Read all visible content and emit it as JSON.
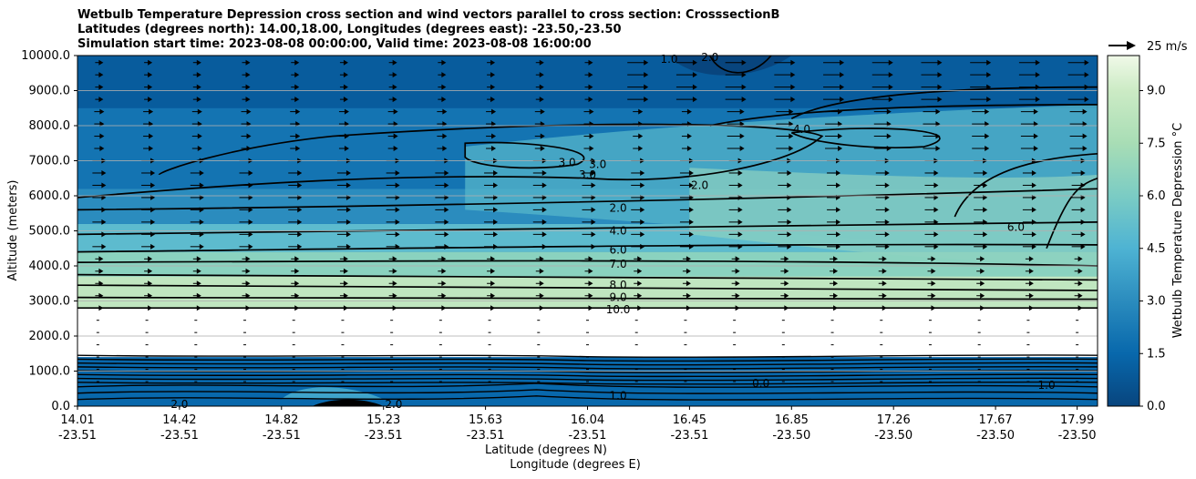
{
  "chart_data": {
    "type": "contour",
    "title_lines": [
      "Wetbulb Temperature Depression cross section and wind vectors parallel to cross section: CrosssectionB",
      "Latitudes (degrees north): 14.00,18.00, Longitudes (degrees east): -23.50,-23.50",
      "Simulation start time: 2023-08-08 00:00:00, Valid time: 2023-08-08 16:00:00"
    ],
    "ylabel": "Altitude (meters)",
    "xlabel_lat": "Latitude (degrees N)",
    "xlabel_lon": "Longitude (degrees E)",
    "ylim": [
      0,
      10000
    ],
    "yticks": [
      "0.0",
      "1000.0",
      "2000.0",
      "3000.0",
      "4000.0",
      "5000.0",
      "6000.0",
      "7000.0",
      "8000.0",
      "9000.0",
      "10000.0"
    ],
    "xticks": [
      {
        "lat": "14.01",
        "lon": "-23.51",
        "pos": 0.0
      },
      {
        "lat": "14.42",
        "lon": "-23.51",
        "pos": 0.1
      },
      {
        "lat": "14.82",
        "lon": "-23.51",
        "pos": 0.2
      },
      {
        "lat": "15.23",
        "lon": "-23.51",
        "pos": 0.3
      },
      {
        "lat": "15.63",
        "lon": "-23.51",
        "pos": 0.4
      },
      {
        "lat": "16.04",
        "lon": "-23.51",
        "pos": 0.5
      },
      {
        "lat": "16.45",
        "lon": "-23.51",
        "pos": 0.6
      },
      {
        "lat": "16.85",
        "lon": "-23.50",
        "pos": 0.7
      },
      {
        "lat": "17.26",
        "lon": "-23.50",
        "pos": 0.8
      },
      {
        "lat": "17.67",
        "lon": "-23.50",
        "pos": 0.9
      },
      {
        "lat": "17.99",
        "lon": "-23.50",
        "pos": 0.98
      }
    ],
    "colorbar": {
      "label": "Wetbulb Temperature Depression °C",
      "range": [
        0,
        10
      ],
      "ticks": [
        "0.0",
        "1.5",
        "3.0",
        "4.5",
        "6.0",
        "7.5",
        "9.0"
      ]
    },
    "quiver_key": "25 m/s",
    "contour_labels": [
      {
        "text": "1.0",
        "x": 0.58,
        "y": 9900
      },
      {
        "text": "2.0",
        "x": 0.62,
        "y": 9950
      },
      {
        "text": "4.0",
        "x": 0.71,
        "y": 7900
      },
      {
        "text": "3.0",
        "x": 0.48,
        "y": 6950
      },
      {
        "text": "3.0",
        "x": 0.51,
        "y": 6900
      },
      {
        "text": "3.0",
        "x": 0.5,
        "y": 6600
      },
      {
        "text": "2.0",
        "x": 0.61,
        "y": 6300
      },
      {
        "text": "2.0",
        "x": 0.53,
        "y": 5650
      },
      {
        "text": "4.0",
        "x": 0.53,
        "y": 5000
      },
      {
        "text": "6.0",
        "x": 0.92,
        "y": 5100
      },
      {
        "text": "6.0",
        "x": 0.53,
        "y": 4450
      },
      {
        "text": "7.0",
        "x": 0.53,
        "y": 4050
      },
      {
        "text": "8.0",
        "x": 0.53,
        "y": 3450
      },
      {
        "text": "9.0",
        "x": 0.53,
        "y": 3100
      },
      {
        "text": "10.0",
        "x": 0.53,
        "y": 2750
      },
      {
        "text": "1.0",
        "x": 0.53,
        "y": 300
      },
      {
        "text": "2.0",
        "x": 0.1,
        "y": 50
      },
      {
        "text": "2.0",
        "x": 0.31,
        "y": 50
      },
      {
        "text": "0.0",
        "x": 0.67,
        "y": 650
      },
      {
        "text": "1.0",
        "x": 0.95,
        "y": 600
      }
    ],
    "bands": [
      {
        "y0": 0,
        "y1": 1400,
        "level": 1.5
      },
      {
        "y0": 1400,
        "y1": 2800,
        "level": 10.0
      },
      {
        "y0": 2800,
        "y1": 3700,
        "level": 8.5
      },
      {
        "y0": 3700,
        "y1": 4400,
        "level": 6.5
      },
      {
        "y0": 4400,
        "y1": 5200,
        "level": 5.0
      },
      {
        "y0": 5200,
        "y1": 6200,
        "level": 3.0
      },
      {
        "y0": 6200,
        "y1": 8500,
        "level": 2.0
      },
      {
        "y0": 8500,
        "y1": 10000,
        "level": 1.0
      }
    ]
  }
}
